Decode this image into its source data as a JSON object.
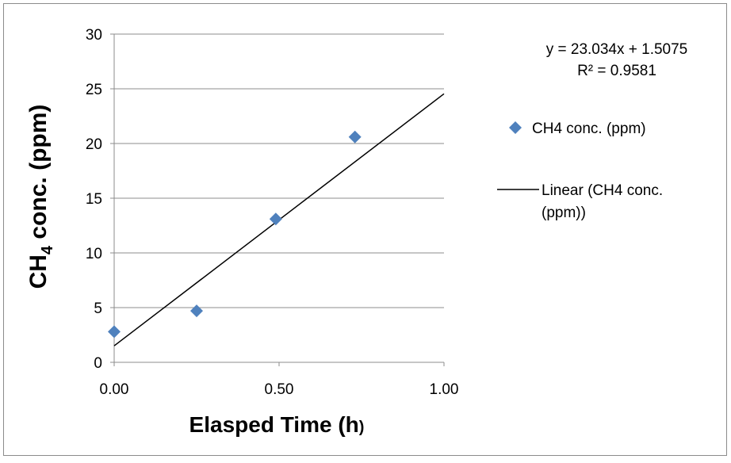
{
  "chart_data": {
    "type": "scatter",
    "xlabel_main": "Elasped Time (h",
    "xlabel_paren": ")",
    "ylabel_prefix": "CH",
    "ylabel_sub": "4",
    "ylabel_suffix": " conc. (ppm)",
    "xlim": [
      0,
      1
    ],
    "ylim": [
      0,
      30
    ],
    "x_ticks": [
      0,
      0.5,
      1
    ],
    "x_tick_labels": [
      "0.00",
      "0.50",
      "1.00"
    ],
    "y_ticks": [
      0,
      5,
      10,
      15,
      20,
      25,
      30
    ],
    "y_tick_labels": [
      "0",
      "5",
      "10",
      "15",
      "20",
      "25",
      "30"
    ],
    "grid": "horizontal",
    "legend_position": "right",
    "series": [
      {
        "name": "CH4 conc. (ppm)",
        "marker": "diamond",
        "color": "#4F81BD",
        "x": [
          0.0,
          0.25,
          0.49,
          0.73
        ],
        "y": [
          2.8,
          4.7,
          13.1,
          20.6
        ]
      }
    ],
    "trendline": {
      "name_line1": "Linear (CH4 conc.",
      "name_line2": "(ppm))",
      "type": "linear",
      "slope": 23.034,
      "intercept": 1.5075,
      "color": "#000000",
      "equation": "y = 23.034x + 1.5075",
      "r_squared": "R² = 0.9581"
    }
  }
}
